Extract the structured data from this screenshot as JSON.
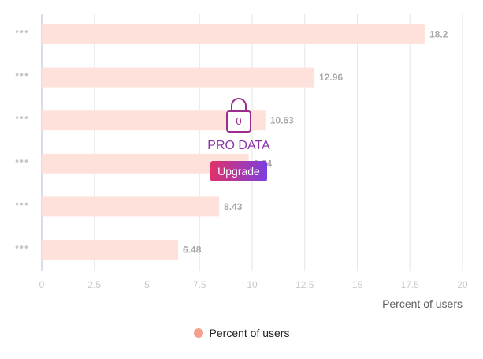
{
  "chart_data": {
    "type": "bar",
    "orientation": "horizontal",
    "categories": [
      "•••",
      "•••",
      "•••",
      "•••",
      "•••",
      "•••"
    ],
    "series": [
      {
        "name": "Percent of users",
        "values": [
          18.2,
          12.96,
          10.63,
          9.84,
          8.43,
          6.48
        ]
      }
    ],
    "value_labels": [
      "18.2",
      "12.96",
      "10.63",
      "9.84",
      "8.43",
      "6.48"
    ],
    "xlabel": "Percent of users",
    "ylabel": "",
    "xlim": [
      0,
      20
    ],
    "xticks": [
      0,
      2.5,
      5,
      7.5,
      10,
      12.5,
      15,
      17.5,
      20
    ],
    "xtick_labels": [
      "0",
      "2.5",
      "5",
      "7.5",
      "10",
      "12.5",
      "15",
      "17.5",
      "20"
    ],
    "grid": true,
    "legend_position": "bottom",
    "bar_color": "#ffe1dc",
    "legend_color": "#f4a08c"
  },
  "overlay": {
    "lock_count": "0",
    "pro_label": "PRO DATA",
    "upgrade_label": "Upgrade"
  },
  "legend": {
    "label": "Percent of users"
  }
}
